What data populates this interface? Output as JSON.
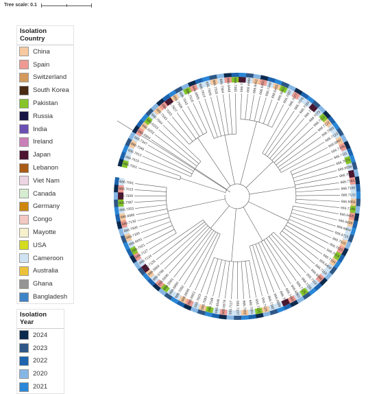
{
  "tree_scale": {
    "label": "Tree scale: 0.1"
  },
  "country_legend": {
    "title": "Isolation Country",
    "items": [
      {
        "label": "China",
        "color": "#f6c9a0"
      },
      {
        "label": "Spain",
        "color": "#ee9a92"
      },
      {
        "label": "Switzerland",
        "color": "#d49a5d"
      },
      {
        "label": "South Korea",
        "color": "#4a2a12"
      },
      {
        "label": "Pakistan",
        "color": "#85c52a"
      },
      {
        "label": "Russia",
        "color": "#1a1444"
      },
      {
        "label": "India",
        "color": "#6c4fb3"
      },
      {
        "label": "Ireland",
        "color": "#c97fb7"
      },
      {
        "label": "Japan",
        "color": "#4c1430"
      },
      {
        "label": "Lebanon",
        "color": "#a85c17"
      },
      {
        "label": "Viet Nam",
        "color": "#eed5e3"
      },
      {
        "label": "Canada",
        "color": "#d5ecd0"
      },
      {
        "label": "Germany",
        "color": "#cd870e"
      },
      {
        "label": "Congo",
        "color": "#f4c8c2"
      },
      {
        "label": "Mayotte",
        "color": "#f7f0cc"
      },
      {
        "label": "USA",
        "color": "#d5dc1f"
      },
      {
        "label": "Cameroon",
        "color": "#cfe3f3"
      },
      {
        "label": "Australia",
        "color": "#ecc23a"
      },
      {
        "label": "Ghana",
        "color": "#959595"
      },
      {
        "label": "Bangladesh",
        "color": "#3f84c6"
      }
    ]
  },
  "year_legend": {
    "title": "Isolation Year",
    "items": [
      {
        "label": "2024",
        "color": "#0b2a4e"
      },
      {
        "label": "2023",
        "color": "#2e5786"
      },
      {
        "label": "2022",
        "color": "#1d63ae"
      },
      {
        "label": "2020",
        "color": "#86b6e3"
      },
      {
        "label": "2021",
        "color": "#2a86d6"
      }
    ]
  },
  "tips": [
    "666.7001",
    "666.7615",
    "666.7613",
    "666.7349",
    "666.7347",
    "666.5854",
    "666.6202",
    "666.6203",
    "666.7004",
    "666.7543",
    "666.7003",
    "666.7607",
    "666.7508",
    "666.7542",
    "666.7516",
    "666.6005",
    "666.7614",
    "666.7609",
    "666.7518",
    "666.7364",
    "666.6448",
    "666.7365",
    "666.7363",
    "666.6449",
    "666.6451",
    "666.6450",
    "666.7348",
    "666.6455",
    "666.6853",
    "666.7037",
    "666.7077",
    "666.7076",
    "666.7034",
    "666.7121",
    "666.7075",
    "666.7112",
    "666.7122",
    "666.7083",
    "666.7123",
    "666.6897",
    "666.7105",
    "666.7111",
    "666.7079",
    "666.6636",
    "666.7081",
    "666.7181",
    "666.7182",
    "666.7132",
    "666.6955",
    "666.7149",
    "666.6405",
    "666.6658",
    "666.6864",
    "666.6715",
    "666.7515",
    "666.7512",
    "666.7514",
    "666.7154",
    "666.6408",
    "666.7118",
    "666.6884",
    "666.7152",
    "666.7155",
    "666.7125",
    "666.6863",
    "666.7469",
    "666.7513",
    "666.6899",
    "666.7182",
    "666.7126",
    "666.7122",
    "666.7081",
    "666.7002",
    "666.7107",
    "666.7117",
    "666.6879",
    "666.6549",
    "666.7048",
    "666.7093",
    "666.7823",
    "666.6661",
    "666.6695",
    "666.7092",
    "666.6893",
    "666.5591",
    "666.5590",
    "666.5796",
    "666.5864",
    "666.7135",
    "666.7124",
    "666.7127",
    "666.7021",
    "666.6691",
    "666.7100",
    "666.7506",
    "666.7130",
    "666.6886",
    "666.7353",
    "666.7387",
    "666.7508",
    "666.7013",
    "666.7001"
  ]
}
